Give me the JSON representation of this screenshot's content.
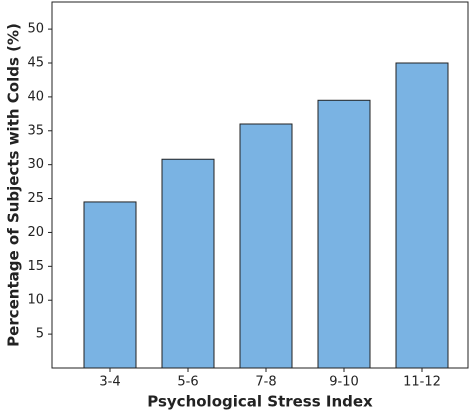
{
  "chart_data": {
    "type": "bar",
    "x_label": "Psychological Stress Index",
    "y_label": "Percentage of Subjects with Colds (%)",
    "categories": [
      "3-4",
      "5-6",
      "7-8",
      "9-10",
      "11-12"
    ],
    "values": [
      24.5,
      30.8,
      36,
      39.5,
      45
    ],
    "color": "#7ab3e3",
    "ylim": [
      0,
      54
    ],
    "yticks": [
      5,
      10,
      15,
      20,
      25,
      30,
      35,
      40,
      45,
      50
    ],
    "grid": false
  }
}
